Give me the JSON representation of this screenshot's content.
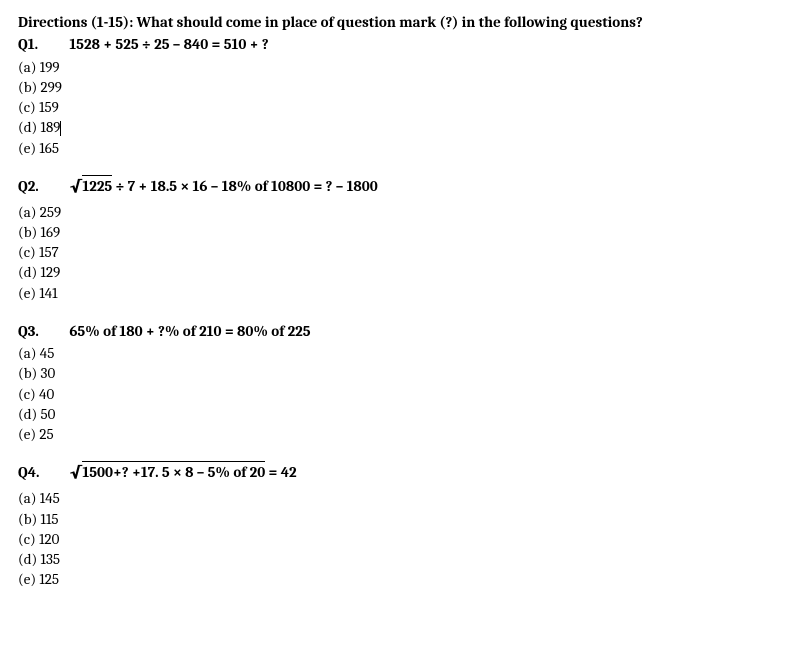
{
  "directions": "Directions (1-15): What should come in place of question mark (?) in the following questions?",
  "questions": [
    {
      "number": "Q1.",
      "text_html": "1528 + 525 ÷ 25 – 840 = 510 + ?",
      "cursor_after_option": 3,
      "options": [
        "(a) 199",
        "(b) 299",
        "(c) 159",
        "(d) 189",
        "(e) 165"
      ]
    },
    {
      "number": "Q2.",
      "sqrt_part": "1225",
      "after_sqrt": " ÷ 7 + 18.5 × 16 – 18% of 10800 = ? – 1800",
      "options": [
        "(a) 259",
        "(b) 169",
        "(c) 157",
        "(d) 129",
        "(e) 141"
      ]
    },
    {
      "number": "Q3.",
      "text_html": "65% of 180 + ?% of 210 = 80% of 225",
      "options": [
        "(a) 45",
        "(b) 30",
        "(c) 40",
        "(d) 50",
        "(e) 25"
      ]
    },
    {
      "number": "Q4.",
      "sqrt_part": "1500+? +17. 5 × 8 – 5% of 20",
      "after_sqrt": " = 42",
      "options": [
        "(a) 145",
        "(b) 115",
        "(c) 120",
        "(d) 135",
        "(e) 125"
      ]
    }
  ],
  "style": {
    "background_color": "#ffffff",
    "text_color": "#000000",
    "font_family": "Cambria, Times New Roman, serif",
    "base_font_size": 15,
    "line_height": 1.35,
    "bold_weight": "bold"
  }
}
